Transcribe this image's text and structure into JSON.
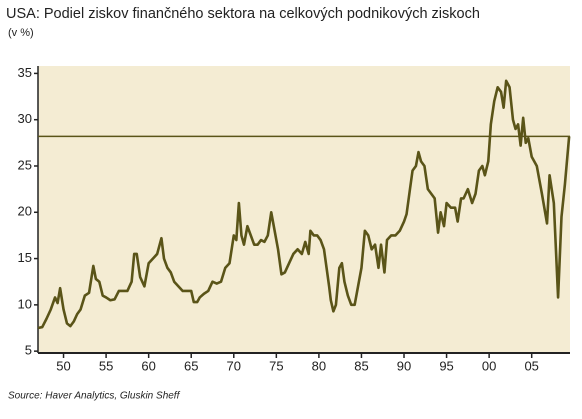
{
  "chart_data": {
    "type": "line",
    "title": "USA: Podiel ziskov finančného sektora na celkových podnikových ziskoch",
    "subtitle": "(v %)",
    "source": "Source: Haver Analytics, Gluskin Sheff",
    "x": [
      1947,
      1947.5,
      1948,
      1948.5,
      1949,
      1949.3,
      1949.6,
      1950,
      1950.4,
      1950.8,
      1951.2,
      1951.6,
      1952,
      1952.5,
      1953,
      1953.5,
      1953.8,
      1954.2,
      1954.6,
      1955,
      1955.5,
      1956,
      1956.5,
      1957,
      1957.5,
      1958,
      1958.3,
      1958.6,
      1959,
      1959.5,
      1960,
      1960.5,
      1961,
      1961.5,
      1961.8,
      1962.2,
      1962.6,
      1963,
      1963.5,
      1964,
      1964.5,
      1965,
      1965.3,
      1965.7,
      1966,
      1966.5,
      1967,
      1967.5,
      1968,
      1968.5,
      1969,
      1969.5,
      1970,
      1970.3,
      1970.6,
      1970.9,
      1971.2,
      1971.6,
      1972,
      1972.4,
      1972.8,
      1973.2,
      1973.6,
      1974,
      1974.4,
      1974.8,
      1975.2,
      1975.6,
      1976,
      1976.5,
      1977,
      1977.5,
      1978,
      1978.4,
      1978.8,
      1979,
      1979.4,
      1979.8,
      1980.2,
      1980.6,
      1980.9,
      1981.2,
      1981.4,
      1981.7,
      1982,
      1982.4,
      1982.7,
      1983,
      1983.4,
      1983.8,
      1984.2,
      1984.6,
      1985,
      1985.4,
      1985.8,
      1986.2,
      1986.6,
      1987,
      1987.3,
      1987.7,
      1988,
      1988.5,
      1989,
      1989.5,
      1990,
      1990.3,
      1990.7,
      1991,
      1991.4,
      1991.7,
      1992,
      1992.4,
      1992.8,
      1993.2,
      1993.6,
      1994,
      1994.3,
      1994.7,
      1995,
      1995.5,
      1996,
      1996.3,
      1996.7,
      1997,
      1997.5,
      1998,
      1998.4,
      1998.8,
      1999.2,
      1999.5,
      1999.9,
      2000.2,
      2000.6,
      2001,
      2001.4,
      2001.7,
      2002,
      2002.4,
      2002.8,
      2003.1,
      2003.4,
      2003.7,
      2004,
      2004.3,
      2004.6,
      2005,
      2005.6,
      2006.2,
      2006.8,
      2007.1,
      2007.6,
      2008.1,
      2008.5,
      2008.9,
      2009.4
    ],
    "series": [
      {
        "color": "#5a5418",
        "values": [
          7.5,
          7.6,
          8.5,
          9.5,
          10.8,
          10.2,
          11.8,
          9.5,
          8,
          7.7,
          8.2,
          9,
          9.5,
          11,
          11.3,
          14.2,
          12.8,
          12.5,
          11,
          10.8,
          10.5,
          10.6,
          11.5,
          11.5,
          11.5,
          12.5,
          15.5,
          15.5,
          13,
          12,
          14.5,
          15,
          15.5,
          17.2,
          15,
          14,
          13.5,
          12.5,
          12,
          11.5,
          11.5,
          11.5,
          10.3,
          10.3,
          10.8,
          11.2,
          11.5,
          12.5,
          12.3,
          12.5,
          14,
          14.5,
          17.5,
          17,
          21,
          17.5,
          16.5,
          18.5,
          17.5,
          16.5,
          16.5,
          17,
          16.8,
          17.5,
          20,
          18,
          16,
          13.3,
          13.5,
          14.5,
          15.5,
          16,
          15.5,
          16.8,
          15.5,
          18,
          17.5,
          17.5,
          17,
          16,
          14,
          12,
          10.5,
          9.3,
          10,
          14,
          14.5,
          12.5,
          11,
          10,
          10,
          12,
          14,
          18,
          17.5,
          16,
          16.5,
          14,
          16.5,
          13.5,
          17,
          17.5,
          17.5,
          18,
          19,
          19.8,
          22.5,
          24.5,
          25,
          26.5,
          25.5,
          25,
          22.5,
          22,
          21.5,
          17.8,
          20,
          18.5,
          21,
          20.5,
          20.5,
          19,
          21.5,
          21.5,
          22.5,
          21,
          22,
          24.5,
          25,
          24,
          25.5,
          29.5,
          32,
          33.5,
          33,
          31.3,
          34.2,
          33.5,
          30,
          29,
          29.5,
          27.2,
          30.2,
          27.5,
          28,
          26,
          25,
          22,
          18.8,
          24,
          21,
          10.8,
          19.5,
          23,
          28.2
        ]
      }
    ],
    "reference_line": 28.2,
    "xlim": [
      1947,
      2009.5
    ],
    "xticks": [
      {
        "value": 1950,
        "label": "50"
      },
      {
        "value": 1955,
        "label": "55"
      },
      {
        "value": 1960,
        "label": "60"
      },
      {
        "value": 1965,
        "label": "65"
      },
      {
        "value": 1970,
        "label": "70"
      },
      {
        "value": 1975,
        "label": "75"
      },
      {
        "value": 1980,
        "label": "80"
      },
      {
        "value": 1985,
        "label": "85"
      },
      {
        "value": 1990,
        "label": "90"
      },
      {
        "value": 1995,
        "label": "95"
      },
      {
        "value": 2000,
        "label": "00"
      },
      {
        "value": 2005,
        "label": "05"
      }
    ],
    "ylim": [
      4.8,
      35.8
    ],
    "yticks": [
      5,
      10,
      15,
      20,
      25,
      30,
      35
    ],
    "background": "#f4ecd3"
  }
}
